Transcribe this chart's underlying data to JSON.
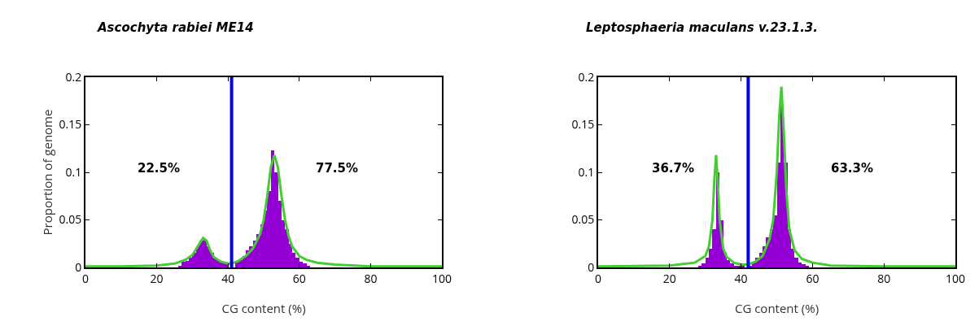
{
  "chart_data": [
    {
      "type": "histogram",
      "title": "Ascochyta rabiei ME14",
      "xlabel": "CG content (%)",
      "ylabel": "Proportion of genome",
      "color": "#9400d3",
      "bins": [
        26,
        27,
        28,
        29,
        30,
        31,
        32,
        33,
        34,
        35,
        36,
        37,
        38,
        39,
        40,
        41,
        42,
        43,
        44,
        45,
        46,
        47,
        48,
        49,
        50,
        51,
        52,
        53,
        54,
        55,
        56,
        57,
        58,
        59,
        60,
        61,
        62,
        63
      ],
      "values": [
        0.002,
        0.006,
        0.007,
        0.01,
        0.015,
        0.022,
        0.028,
        0.03,
        0.022,
        0.015,
        0.01,
        0.007,
        0.006,
        0.005,
        null,
        null,
        0.005,
        0.008,
        0.012,
        0.018,
        0.022,
        0.028,
        0.035,
        0.045,
        0.06,
        0.08,
        0.123,
        0.1,
        0.07,
        0.05,
        0.04,
        0.025,
        0.015,
        0.01,
        0.006,
        0.004,
        0.002
      ],
      "series": [
        {
          "type": "line",
          "color": "#44cc33",
          "x": [
            0,
            10,
            20,
            25,
            28,
            30,
            32,
            33,
            34,
            35,
            36,
            38,
            40,
            41,
            43,
            45,
            47,
            49,
            50,
            51,
            52,
            53,
            54,
            55,
            56,
            57,
            58,
            60,
            62,
            65,
            70,
            80,
            100
          ],
          "values": [
            0.001,
            0.001,
            0.002,
            0.004,
            0.008,
            0.013,
            0.025,
            0.031,
            0.028,
            0.018,
            0.011,
            0.006,
            0.004,
            0.004,
            0.007,
            0.012,
            0.02,
            0.035,
            0.05,
            0.075,
            0.105,
            0.118,
            0.105,
            0.075,
            0.05,
            0.033,
            0.022,
            0.012,
            0.008,
            0.005,
            0.003,
            0.001,
            0.001
          ]
        }
      ],
      "ref_lines": [
        {
          "axis": "x",
          "value": 41,
          "color": "#0000ee"
        }
      ],
      "annotations": [
        "22.5%",
        "77.5%"
      ],
      "xlim": [
        0,
        100
      ],
      "xticks": [
        0,
        20,
        40,
        60,
        80,
        100
      ],
      "ylim": [
        0,
        0.2
      ],
      "yticks": [
        0,
        0.05,
        0.1,
        0.15,
        0.2
      ],
      "grid": false
    },
    {
      "type": "histogram",
      "title": "Leptosphaeria maculans v.23.1.3.",
      "xlabel": "CG content (%)",
      "color": "#9400d3",
      "bins": [
        28,
        29,
        30,
        31,
        32,
        33,
        34,
        35,
        36,
        37,
        38,
        39,
        40,
        41,
        42,
        43,
        44,
        45,
        46,
        47,
        48,
        49,
        50,
        51,
        52,
        53,
        54,
        55,
        56,
        57,
        58,
        59
      ],
      "values": [
        0.002,
        0.004,
        0.01,
        0.02,
        0.04,
        0.1,
        0.05,
        0.015,
        0.008,
        0.004,
        0.002,
        0.002,
        0.002,
        null,
        0.002,
        0.006,
        0.01,
        0.015,
        0.022,
        0.032,
        0.04,
        0.055,
        0.11,
        0.17,
        0.11,
        0.04,
        0.02,
        0.01,
        0.005,
        0.003,
        0.002
      ],
      "series": [
        {
          "type": "line",
          "color": "#44cc33",
          "x": [
            0,
            20,
            27,
            30,
            31,
            32,
            32.5,
            33,
            33.5,
            34,
            35,
            36,
            38,
            40,
            42,
            44,
            46,
            48,
            49,
            50,
            50.7,
            51.3,
            52,
            52.7,
            53.5,
            55,
            57,
            60,
            65,
            80,
            100
          ],
          "values": [
            0.001,
            0.002,
            0.005,
            0.012,
            0.022,
            0.05,
            0.09,
            0.118,
            0.09,
            0.05,
            0.02,
            0.011,
            0.005,
            0.003,
            0.003,
            0.006,
            0.012,
            0.03,
            0.05,
            0.1,
            0.16,
            0.19,
            0.14,
            0.08,
            0.04,
            0.018,
            0.009,
            0.005,
            0.002,
            0.001,
            0.001
          ]
        }
      ],
      "ref_lines": [
        {
          "axis": "x",
          "value": 42,
          "color": "#0000ee"
        }
      ],
      "annotations": [
        "36.7%",
        "63.3%"
      ],
      "xlim": [
        0,
        100
      ],
      "xticks": [
        0,
        20,
        40,
        60,
        80,
        100
      ],
      "ylim": [
        0,
        0.2
      ],
      "yticks": [
        0,
        0.05,
        0.1,
        0.15,
        0.2
      ],
      "grid": false
    }
  ]
}
